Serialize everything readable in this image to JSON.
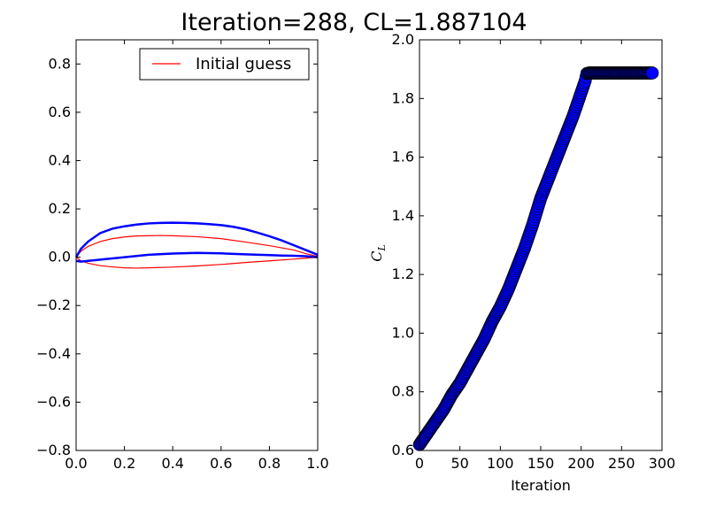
{
  "figure": {
    "title": "Iteration=288, CL=1.887104"
  },
  "chart_data": [
    {
      "type": "line",
      "title": "",
      "xlabel": "",
      "ylabel": "",
      "xlim": [
        0.0,
        1.0
      ],
      "ylim": [
        -0.8,
        0.9
      ],
      "x_ticks": [
        "0.0",
        "0.2",
        "0.4",
        "0.6",
        "0.8",
        "1.0"
      ],
      "y_ticks": [
        "−0.8",
        "−0.6",
        "−0.4",
        "−0.2",
        "0.0",
        "0.2",
        "0.4",
        "0.6",
        "0.8"
      ],
      "legend": {
        "position": "top-right",
        "entries": [
          "Initial guess"
        ]
      },
      "series": [
        {
          "name": "Initial guess",
          "color": "#ff0000",
          "upper": {
            "x": [
              0.0,
              0.02,
              0.05,
              0.1,
              0.15,
              0.2,
              0.25,
              0.3,
              0.35,
              0.4,
              0.5,
              0.6,
              0.7,
              0.8,
              0.9,
              0.95,
              1.0
            ],
            "y": [
              0.0,
              0.025,
              0.045,
              0.065,
              0.077,
              0.084,
              0.088,
              0.089,
              0.09,
              0.089,
              0.085,
              0.077,
              0.063,
              0.048,
              0.03,
              0.015,
              0.003
            ]
          },
          "lower": {
            "x": [
              0.0,
              0.02,
              0.05,
              0.1,
              0.15,
              0.2,
              0.25,
              0.3,
              0.4,
              0.5,
              0.6,
              0.7,
              0.8,
              0.9,
              0.95,
              1.0
            ],
            "y": [
              0.0,
              -0.015,
              -0.025,
              -0.035,
              -0.04,
              -0.044,
              -0.045,
              -0.044,
              -0.041,
              -0.036,
              -0.03,
              -0.022,
              -0.015,
              -0.008,
              -0.004,
              0.0
            ]
          }
        },
        {
          "name": "",
          "color": "#0000ff",
          "upper": {
            "x": [
              0.0,
              0.02,
              0.05,
              0.1,
              0.15,
              0.2,
              0.25,
              0.3,
              0.35,
              0.4,
              0.45,
              0.5,
              0.55,
              0.6,
              0.65,
              0.7,
              0.75,
              0.8,
              0.85,
              0.9,
              0.95,
              1.0
            ],
            "y": [
              0.0,
              0.035,
              0.065,
              0.1,
              0.118,
              0.128,
              0.135,
              0.14,
              0.142,
              0.143,
              0.142,
              0.14,
              0.137,
              0.133,
              0.126,
              0.116,
              0.102,
              0.087,
              0.07,
              0.05,
              0.03,
              0.01
            ]
          },
          "lower": {
            "x": [
              0.0,
              0.02,
              0.05,
              0.1,
              0.2,
              0.3,
              0.4,
              0.5,
              0.6,
              0.7,
              0.8,
              0.85,
              0.9,
              0.95,
              1.0
            ],
            "y": [
              -0.015,
              -0.018,
              -0.015,
              -0.01,
              0.0,
              0.01,
              0.015,
              0.018,
              0.016,
              0.012,
              0.009,
              0.007,
              0.006,
              0.004,
              0.0
            ]
          }
        }
      ]
    },
    {
      "type": "scatter",
      "title": "",
      "xlabel": "Iteration",
      "ylabel": "C_L",
      "ylabel_main": "C",
      "ylabel_sub": "L",
      "xlim": [
        0,
        300
      ],
      "ylim": [
        0.6,
        2.0
      ],
      "x_ticks": [
        "0",
        "50",
        "100",
        "150",
        "200",
        "250",
        "300"
      ],
      "y_ticks": [
        "0.6",
        "0.8",
        "1.0",
        "1.2",
        "1.4",
        "1.6",
        "1.8",
        "2.0"
      ],
      "marker_color": "#0000ff",
      "marker_edge": "#000000",
      "grid": false,
      "series": [
        {
          "name": "",
          "x": [
            0,
            10,
            20,
            30,
            40,
            50,
            60,
            70,
            80,
            90,
            100,
            110,
            120,
            130,
            140,
            150,
            160,
            170,
            180,
            190,
            200,
            205,
            207,
            210,
            220,
            230,
            240,
            250,
            260,
            270,
            280,
            288
          ],
          "y": [
            0.62,
            0.66,
            0.7,
            0.74,
            0.79,
            0.83,
            0.88,
            0.93,
            0.98,
            1.04,
            1.09,
            1.15,
            1.22,
            1.29,
            1.37,
            1.46,
            1.53,
            1.6,
            1.67,
            1.74,
            1.82,
            1.86,
            1.885,
            1.887,
            1.887,
            1.887,
            1.887,
            1.887,
            1.887,
            1.887,
            1.887,
            1.887
          ]
        }
      ]
    }
  ]
}
